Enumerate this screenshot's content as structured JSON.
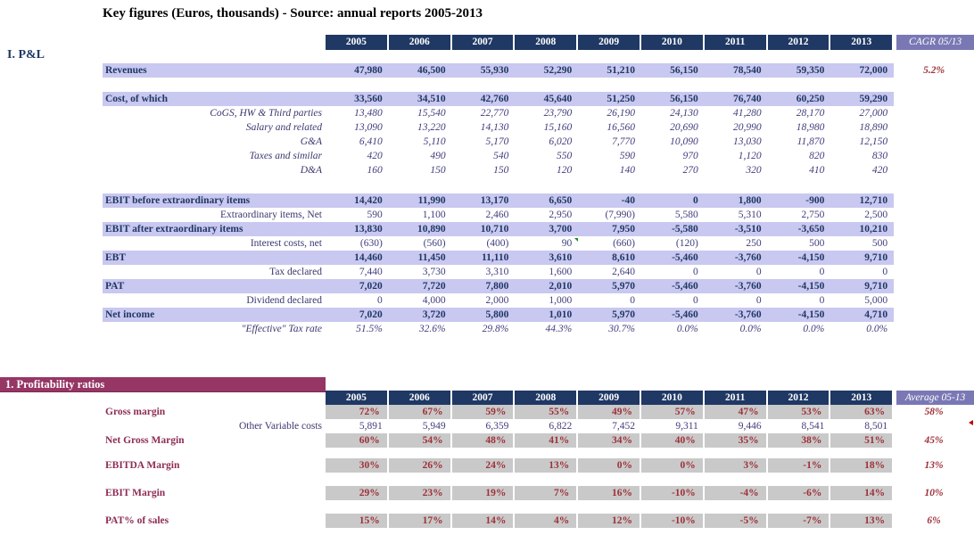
{
  "title": "Key figures (Euros, thousands) - Source: annual reports 2005-2013",
  "years": [
    "2005",
    "2006",
    "2007",
    "2008",
    "2009",
    "2010",
    "2011",
    "2012",
    "2013"
  ],
  "colors": {
    "header_navy": "#1f3864",
    "header_purple": "#7a78b4",
    "row_lavender": "#c9c8f0",
    "value_blue": "#403e7c",
    "accent_red": "#9e3038",
    "banner_maroon": "#963664",
    "label_maroon": "#8e2c55",
    "cell_gray": "#c9c9c9",
    "comment_green": "#1e8a1e",
    "marker_red": "#c00000"
  },
  "pnl": {
    "section_label": "I. P&L",
    "cagr_header": "CAGR 05/13",
    "rows": [
      {
        "type": "total",
        "label": "Revenues",
        "values": [
          "47,980",
          "46,500",
          "55,930",
          "52,290",
          "51,210",
          "56,150",
          "78,540",
          "59,350",
          "72,000"
        ],
        "cagr": "5.2%"
      },
      {
        "type": "spacer"
      },
      {
        "type": "total",
        "label": "Cost, of which",
        "values": [
          "33,560",
          "34,510",
          "42,760",
          "45,640",
          "51,250",
          "56,150",
          "76,740",
          "60,250",
          "59,290"
        ]
      },
      {
        "type": "subi",
        "label": "CoGS, HW & Third parties",
        "values": [
          "13,480",
          "15,540",
          "22,770",
          "23,790",
          "26,190",
          "24,130",
          "41,280",
          "28,170",
          "27,000"
        ]
      },
      {
        "type": "subi",
        "label": "Salary and related",
        "values": [
          "13,090",
          "13,220",
          "14,130",
          "15,160",
          "16,560",
          "20,690",
          "20,990",
          "18,980",
          "18,890"
        ]
      },
      {
        "type": "subi",
        "label": "G&A",
        "values": [
          "6,410",
          "5,110",
          "5,170",
          "6,020",
          "7,770",
          "10,090",
          "13,030",
          "11,870",
          "12,150"
        ]
      },
      {
        "type": "subi",
        "label": "Taxes and similar",
        "values": [
          "420",
          "490",
          "540",
          "550",
          "590",
          "970",
          "1,120",
          "820",
          "830"
        ]
      },
      {
        "type": "subi",
        "label": "D&A",
        "values": [
          "160",
          "150",
          "150",
          "120",
          "140",
          "270",
          "320",
          "410",
          "420"
        ]
      },
      {
        "type": "spacer-lg"
      },
      {
        "type": "total",
        "label": "EBIT before extraordinary items",
        "values": [
          "14,420",
          "11,990",
          "13,170",
          "6,650",
          "-40",
          "0",
          "1,800",
          "-900",
          "12,710"
        ]
      },
      {
        "type": "sub",
        "label": "Extraordinary items, Net",
        "values": [
          "590",
          "1,100",
          "2,460",
          "2,950",
          "(7,990)",
          "5,580",
          "5,310",
          "2,750",
          "2,500"
        ]
      },
      {
        "type": "total",
        "label": "EBIT after extraordinary items",
        "values": [
          "13,830",
          "10,890",
          "10,710",
          "3,700",
          "7,950",
          "-5,580",
          "-3,510",
          "-3,650",
          "10,210"
        ]
      },
      {
        "type": "sub",
        "label": "Interest costs, net",
        "values": [
          "(630)",
          "(560)",
          "(400)",
          "90",
          "(660)",
          "(120)",
          "250",
          "500",
          "500"
        ],
        "comment_index": 3
      },
      {
        "type": "total",
        "label": "EBT",
        "values": [
          "14,460",
          "11,450",
          "11,110",
          "3,610",
          "8,610",
          "-5,460",
          "-3,760",
          "-4,150",
          "9,710"
        ]
      },
      {
        "type": "sub",
        "label": "Tax declared",
        "values": [
          "7,440",
          "3,730",
          "3,310",
          "1,600",
          "2,640",
          "0",
          "0",
          "0",
          "0"
        ]
      },
      {
        "type": "total",
        "label": "PAT",
        "values": [
          "7,020",
          "7,720",
          "7,800",
          "2,010",
          "5,970",
          "-5,460",
          "-3,760",
          "-4,150",
          "9,710"
        ]
      },
      {
        "type": "sub",
        "label": "Dividend declared",
        "values": [
          "0",
          "4,000",
          "2,000",
          "1,000",
          "0",
          "0",
          "0",
          "0",
          "5,000"
        ]
      },
      {
        "type": "total",
        "label": "Net income",
        "values": [
          "7,020",
          "3,720",
          "5,800",
          "1,010",
          "5,970",
          "-5,460",
          "-3,760",
          "-4,150",
          "4,710"
        ]
      },
      {
        "type": "subi",
        "label": "\"Effective\" Tax rate",
        "values": [
          "51.5%",
          "32.6%",
          "29.8%",
          "44.3%",
          "30.7%",
          "0.0%",
          "0.0%",
          "0.0%",
          "0.0%"
        ]
      }
    ]
  },
  "ratios": {
    "banner": "1. Profitability ratios",
    "avg_header": "Average 05-13",
    "rows": [
      {
        "type": "pct",
        "label": "Gross margin",
        "values": [
          "72%",
          "67%",
          "59%",
          "55%",
          "49%",
          "57%",
          "47%",
          "53%",
          "63%"
        ],
        "avg": "58%"
      },
      {
        "type": "plain",
        "label": "Other Variable costs",
        "values": [
          "5,891",
          "5,949",
          "6,359",
          "6,822",
          "7,452",
          "9,311",
          "9,446",
          "8,541",
          "8,501"
        ]
      },
      {
        "type": "pct",
        "label": "Net Gross Margin",
        "values": [
          "60%",
          "54%",
          "48%",
          "41%",
          "34%",
          "40%",
          "35%",
          "38%",
          "51%"
        ],
        "avg": "45%"
      },
      {
        "type": "spacer-12"
      },
      {
        "type": "pct",
        "label": "EBITDA Margin",
        "values": [
          "30%",
          "26%",
          "24%",
          "13%",
          "0%",
          "0%",
          "3%",
          "-1%",
          "18%"
        ],
        "avg": "13%"
      },
      {
        "type": "spacer-15"
      },
      {
        "type": "pct",
        "label": "EBIT Margin",
        "values": [
          "29%",
          "23%",
          "19%",
          "7%",
          "16%",
          "-10%",
          "-4%",
          "-6%",
          "14%"
        ],
        "avg": "10%"
      },
      {
        "type": "spacer-15"
      },
      {
        "type": "pct",
        "label": "PAT% of sales",
        "values": [
          "15%",
          "17%",
          "14%",
          "4%",
          "12%",
          "-10%",
          "-5%",
          "-7%",
          "13%"
        ],
        "avg": "6%"
      }
    ]
  }
}
